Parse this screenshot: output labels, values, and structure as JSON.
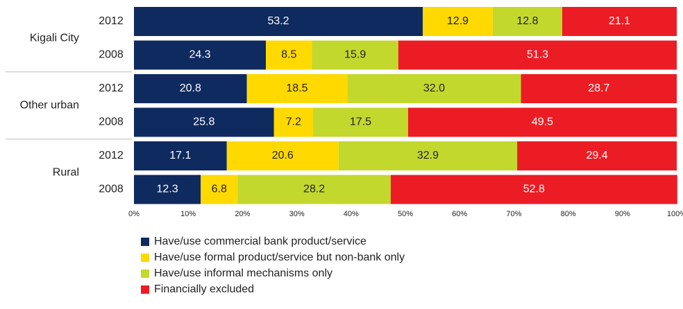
{
  "chart_data": {
    "type": "stacked-bar-horizontal",
    "groups": [
      "Kigali City",
      "Other urban",
      "Rural"
    ],
    "categories": [
      "2012",
      "2008",
      "2012",
      "2008",
      "2012",
      "2008"
    ],
    "series": [
      {
        "name": "Have/use commercial bank product/service",
        "color": "#0f2a5e",
        "values": [
          53.2,
          24.3,
          20.8,
          25.8,
          17.1,
          12.3
        ]
      },
      {
        "name": "Have/use formal product/service but non-bank only",
        "color": "#ffd900",
        "values": [
          12.9,
          8.5,
          18.5,
          7.2,
          20.6,
          6.8
        ]
      },
      {
        "name": "Have/use informal mechanisms only",
        "color": "#c3d82d",
        "values": [
          12.8,
          15.9,
          32.0,
          17.5,
          32.9,
          28.2
        ],
        "value_labels": [
          "12.8",
          "15.9",
          "32.0",
          "17.5",
          "32.9",
          "28.2"
        ]
      },
      {
        "name": "Financially excluded",
        "color": "#ec1c24",
        "values": [
          21.1,
          51.3,
          28.7,
          49.5,
          29.4,
          52.8
        ]
      }
    ],
    "xlim": [
      0,
      100
    ],
    "xticks": [
      {
        "value": 0,
        "label": "0%"
      },
      {
        "value": 10,
        "label": "10%"
      },
      {
        "value": 20,
        "label": "20%"
      },
      {
        "value": 30,
        "label": "30%"
      },
      {
        "value": 40,
        "label": "40%"
      },
      {
        "value": 50,
        "label": "50%"
      },
      {
        "value": 60,
        "label": "60%"
      },
      {
        "value": 70,
        "label": "70%"
      },
      {
        "value": 80,
        "label": "80%"
      },
      {
        "value": 90,
        "label": "90%"
      },
      {
        "value": 100,
        "label": "100%"
      }
    ]
  }
}
